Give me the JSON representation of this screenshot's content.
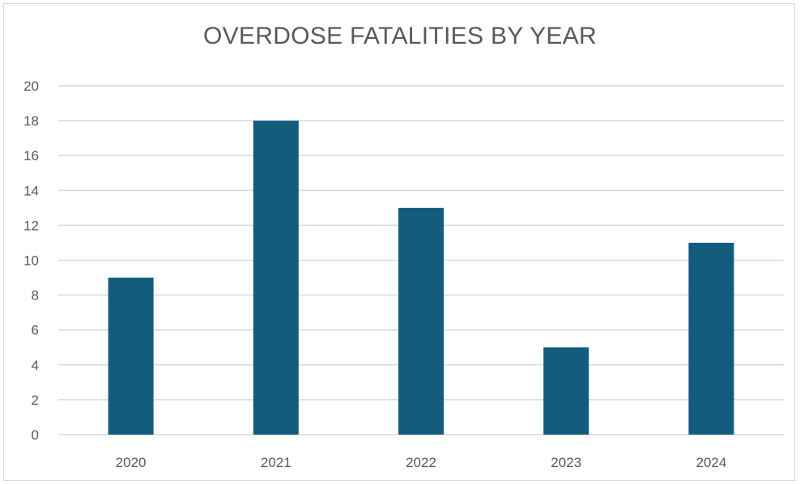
{
  "chart_data": {
    "type": "bar",
    "title": "OVERDOSE FATALITIES BY YEAR",
    "categories": [
      "2020",
      "2021",
      "2022",
      "2023",
      "2024"
    ],
    "values": [
      9,
      18,
      13,
      5,
      11
    ],
    "ylim": [
      0,
      20
    ],
    "yticks": [
      0,
      2,
      4,
      6,
      8,
      10,
      12,
      14,
      16,
      18,
      20
    ],
    "grid": true,
    "legend": "none",
    "xlabel": "",
    "ylabel": "",
    "colors": {
      "bar": "#145c7e",
      "grid": "#d9d9d9",
      "text": "#595959"
    }
  }
}
